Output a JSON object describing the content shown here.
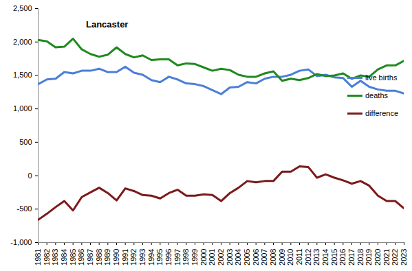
{
  "chart_data": {
    "type": "line",
    "title": "Lancaster",
    "x": [
      1981,
      1982,
      1983,
      1984,
      1985,
      1986,
      1987,
      1988,
      1989,
      1990,
      1991,
      1992,
      1993,
      1994,
      1995,
      1996,
      1997,
      1998,
      1999,
      2000,
      2001,
      2002,
      2003,
      2004,
      2005,
      2006,
      2007,
      2008,
      2009,
      2010,
      2011,
      2012,
      2013,
      2014,
      2015,
      2016,
      2017,
      2018,
      2019,
      2020,
      2021,
      2022,
      2023
    ],
    "xlim": [
      1981,
      2023
    ],
    "xticks": [
      1981,
      1982,
      1983,
      1984,
      1985,
      1986,
      1987,
      1988,
      1989,
      1990,
      1991,
      1992,
      1993,
      1994,
      1995,
      1996,
      1997,
      1998,
      1999,
      2000,
      2001,
      2002,
      2003,
      2004,
      2005,
      2006,
      2007,
      2008,
      2009,
      2010,
      2011,
      2012,
      2013,
      2014,
      2015,
      2016,
      2017,
      2018,
      2019,
      2020,
      2021,
      2022,
      2023
    ],
    "ylim": [
      -1000,
      2500
    ],
    "yticks": [
      {
        "value": -1000,
        "label": "-1,000"
      },
      -500,
      0,
      500,
      {
        "value": 1000,
        "label": "1,000"
      },
      {
        "value": 1500,
        "label": "1,500"
      },
      {
        "value": 2000,
        "label": "2,000"
      },
      {
        "value": 2500,
        "label": "2,500"
      }
    ],
    "grid": false,
    "legend": "right",
    "series": [
      {
        "name": "live births",
        "color": "#4a7fd8",
        "values": [
          1370,
          1440,
          1450,
          1550,
          1530,
          1570,
          1570,
          1600,
          1550,
          1550,
          1630,
          1540,
          1510,
          1430,
          1400,
          1480,
          1440,
          1380,
          1370,
          1340,
          1280,
          1220,
          1320,
          1330,
          1400,
          1380,
          1450,
          1480,
          1480,
          1510,
          1570,
          1590,
          1490,
          1510,
          1470,
          1460,
          1330,
          1420,
          1330,
          1290,
          1270,
          1270,
          1230
        ]
      },
      {
        "name": "deaths",
        "color": "#1f8a1f",
        "values": [
          2030,
          2010,
          1920,
          1930,
          2050,
          1890,
          1820,
          1780,
          1810,
          1920,
          1820,
          1770,
          1800,
          1730,
          1740,
          1740,
          1650,
          1680,
          1670,
          1620,
          1570,
          1600,
          1580,
          1510,
          1480,
          1480,
          1530,
          1560,
          1420,
          1450,
          1430,
          1460,
          1520,
          1490,
          1500,
          1530,
          1450,
          1500,
          1480,
          1590,
          1650,
          1650,
          1720
        ]
      },
      {
        "name": "difference",
        "color": "#7b1a1a",
        "values": [
          -660,
          -570,
          -470,
          -380,
          -520,
          -320,
          -250,
          -180,
          -260,
          -370,
          -190,
          -230,
          -290,
          -300,
          -340,
          -260,
          -210,
          -300,
          -300,
          -280,
          -290,
          -380,
          -260,
          -180,
          -80,
          -100,
          -80,
          -80,
          60,
          60,
          140,
          130,
          -30,
          20,
          -30,
          -70,
          -120,
          -80,
          -150,
          -300,
          -380,
          -380,
          -490
        ]
      }
    ]
  }
}
